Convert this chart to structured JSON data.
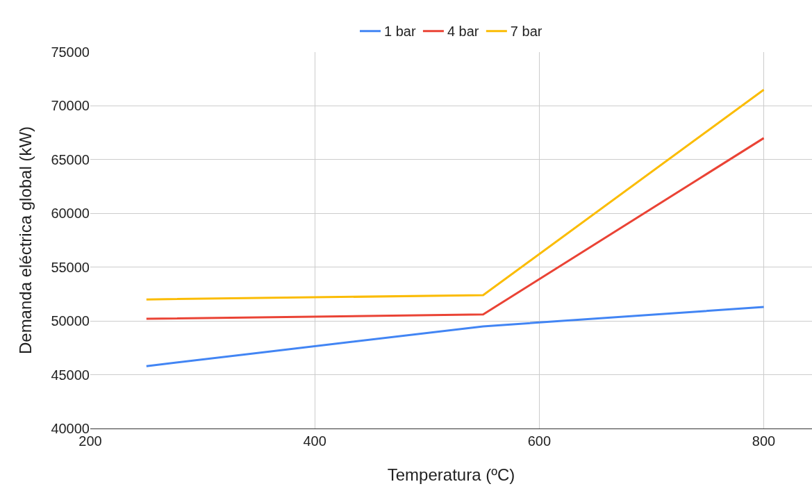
{
  "chart_data": {
    "type": "line",
    "xlabel": "Temperatura (ºC)",
    "ylabel": "Demanda eléctrica global (kW)",
    "x": [
      250,
      550,
      800
    ],
    "series": [
      {
        "name": "1 bar",
        "color": "#4285f4",
        "values": [
          45800,
          49500,
          51300
        ]
      },
      {
        "name": "4 bar",
        "color": "#ea4335",
        "values": [
          50200,
          50600,
          67000
        ]
      },
      {
        "name": "7 bar",
        "color": "#fbbc04",
        "values": [
          52000,
          52400,
          71500
        ]
      }
    ],
    "xlim": [
      200,
      843
    ],
    "xticks": [
      200,
      400,
      600,
      800
    ],
    "ylim": [
      40000,
      75000
    ],
    "yticks": [
      40000,
      45000,
      50000,
      55000,
      60000,
      65000,
      70000,
      75000
    ],
    "grid": true,
    "legend": "top",
    "marker": "none",
    "line_style": "solid"
  }
}
